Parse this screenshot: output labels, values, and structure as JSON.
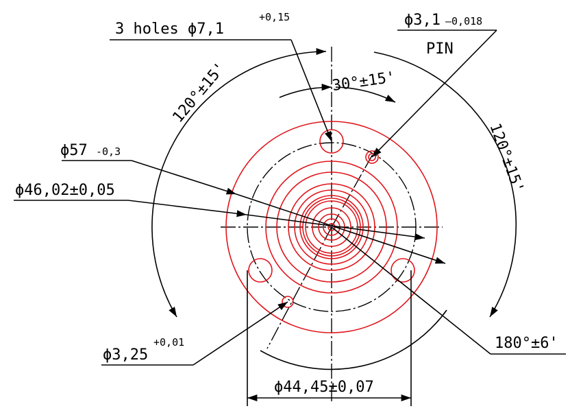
{
  "labels": {
    "holes_main": "3 holes ϕ7,1",
    "holes_tol": "+0,15",
    "pin_dia_main": "ϕ3,1",
    "pin_dia_tol": "–0,018",
    "pin_name": "PIN",
    "angle_30": "30°±15'",
    "angle_120_left": "120°±15'",
    "angle_120_right": "120°±15'",
    "dia_57_main": "ϕ57",
    "dia_57_tol": "-0,3",
    "dia_46": "ϕ46,02±0,05",
    "dia_325_main": "ϕ3,25",
    "dia_325_tol": "+0,01",
    "angle_180": "180°±6'",
    "dia_4445": "ϕ44,45±0,07"
  },
  "colors": {
    "line": "#000000",
    "part": "#e0151b"
  }
}
